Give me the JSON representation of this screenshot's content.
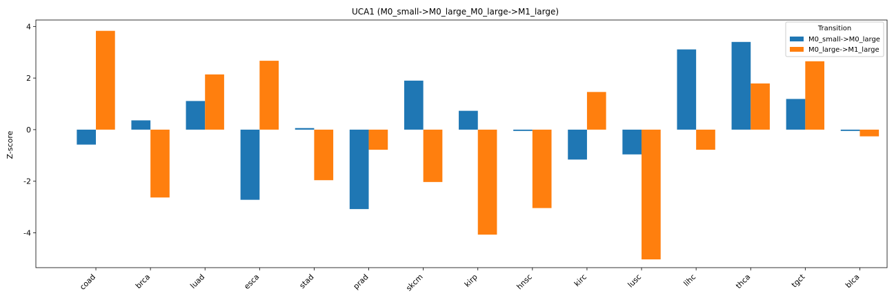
{
  "chart_data": {
    "type": "bar",
    "title": "UCA1 (M0_small->M0_large_M0_large->M1_large)",
    "xlabel": "",
    "ylabel": "Z-score",
    "ylim": [
      -5.35,
      4.25
    ],
    "yticks": [
      -4,
      -2,
      0,
      2,
      4
    ],
    "grid": false,
    "legend": {
      "title": "Transition",
      "position": "top-right"
    },
    "categories": [
      "coad",
      "brca",
      "luad",
      "esca",
      "stad",
      "prad",
      "skcm",
      "kirp",
      "hnsc",
      "kirc",
      "lusc",
      "lihc",
      "thca",
      "tgct",
      "blca"
    ],
    "series": [
      {
        "name": "M0_small->M0_large",
        "color": "#1f77b4",
        "values": [
          -0.58,
          0.36,
          1.11,
          -2.72,
          0.06,
          -3.08,
          1.9,
          0.73,
          -0.05,
          -1.16,
          -0.96,
          3.11,
          3.4,
          1.19,
          -0.05
        ]
      },
      {
        "name": "M0_large->M1_large",
        "color": "#ff7f0e",
        "values": [
          3.83,
          -2.63,
          2.14,
          2.67,
          -1.96,
          -0.78,
          -2.03,
          -4.07,
          -3.04,
          1.46,
          -5.03,
          -0.78,
          1.79,
          2.65,
          -0.26
        ]
      }
    ]
  }
}
